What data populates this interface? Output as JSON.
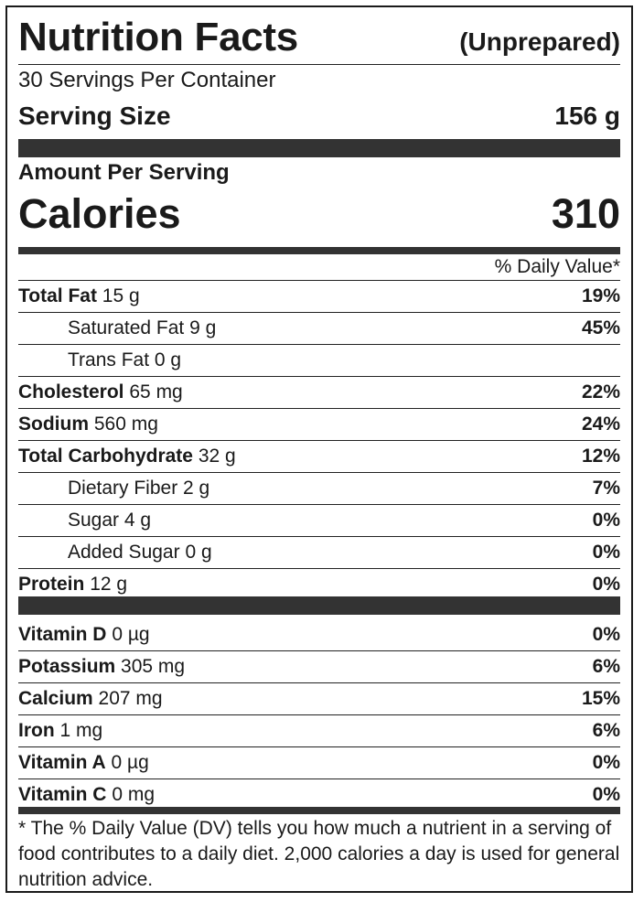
{
  "header": {
    "title": "Nutrition Facts",
    "qualifier": "(Unprepared)",
    "servings_per_container": "30 Servings Per Container",
    "serving_size_label": "Serving Size",
    "serving_size_value": "156 g"
  },
  "calories": {
    "amount_label": "Amount Per Serving",
    "label": "Calories",
    "value": "310"
  },
  "daily_value_header": "% Daily Value*",
  "nutrients": [
    {
      "name": "Total Fat",
      "amount": "15 g",
      "dv": "19%"
    },
    {
      "name": "Saturated Fat",
      "amount": "9 g",
      "dv": "45%"
    },
    {
      "name": "Trans Fat",
      "amount": "0 g",
      "dv": ""
    },
    {
      "name": "Cholesterol",
      "amount": "65 mg",
      "dv": "22%"
    },
    {
      "name": "Sodium",
      "amount": "560 mg",
      "dv": "24%"
    },
    {
      "name": "Total Carbohydrate",
      "amount": "32 g",
      "dv": "12%"
    },
    {
      "name": "Dietary Fiber",
      "amount": "2 g",
      "dv": "7%"
    },
    {
      "name": "Sugar",
      "amount": "4 g",
      "dv": "0%"
    },
    {
      "name": "Added Sugar",
      "amount": "0 g",
      "dv": "0%"
    },
    {
      "name": "Protein",
      "amount": "12 g",
      "dv": "0%"
    }
  ],
  "vitamins": [
    {
      "name": "Vitamin D",
      "amount": "0 µg",
      "dv": "0%"
    },
    {
      "name": "Potassium",
      "amount": "305 mg",
      "dv": "6%"
    },
    {
      "name": "Calcium",
      "amount": "207 mg",
      "dv": "15%"
    },
    {
      "name": "Iron",
      "amount": "1 mg",
      "dv": "6%"
    },
    {
      "name": "Vitamin A",
      "amount": "0 µg",
      "dv": "0%"
    },
    {
      "name": "Vitamin C",
      "amount": "0 mg",
      "dv": "0%"
    }
  ],
  "footnote": "* The % Daily Value (DV) tells you how much a nutrient in a serving of food contributes to a daily diet. 2,000 calories a day is used for general nutrition advice."
}
